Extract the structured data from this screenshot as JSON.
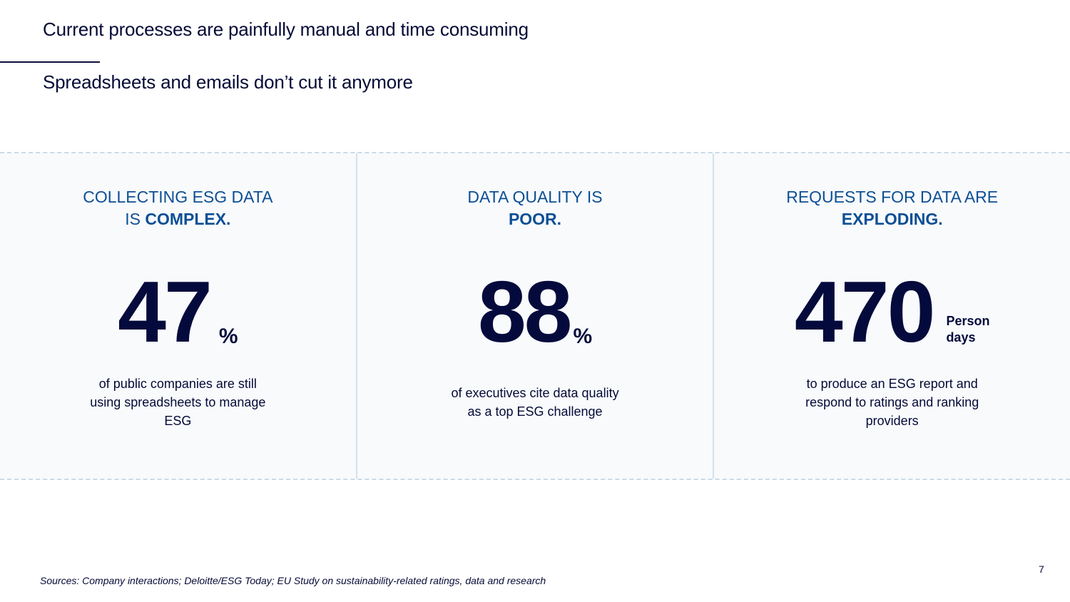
{
  "slide": {
    "title": "Current processes are painfully manual and time consuming",
    "subtitle": "Spreadsheets and emails don’t cut it anymore",
    "page_number": "7",
    "sources": "Sources: Company interactions; Deloitte/ESG Today; EU Study on sustainability-related ratings, data and research"
  },
  "stats": [
    {
      "heading_line1": "COLLECTING ESG DATA",
      "heading_prefix": "IS ",
      "heading_emph": "COMPLEX.",
      "value": "47",
      "unit": "%",
      "description": "of public companies are still using spreadsheets to manage ESG"
    },
    {
      "heading_line1": "DATA QUALITY IS",
      "heading_prefix": "",
      "heading_emph": "POOR.",
      "value": "88",
      "unit": "%",
      "description": "of executives cite data quality as a top ESG challenge"
    },
    {
      "heading_line1": "REQUESTS FOR DATA ARE",
      "heading_prefix": "",
      "heading_emph": "EXPLODING.",
      "value": "470",
      "unit": "Person\ndays",
      "description": "to produce an ESG report and respond to ratings and ranking providers"
    }
  ],
  "colors": {
    "heading_blue": "#0d4f94",
    "navy": "#050a3c",
    "panel_bg": "#f8fafc",
    "divider": "#c9dce6"
  }
}
